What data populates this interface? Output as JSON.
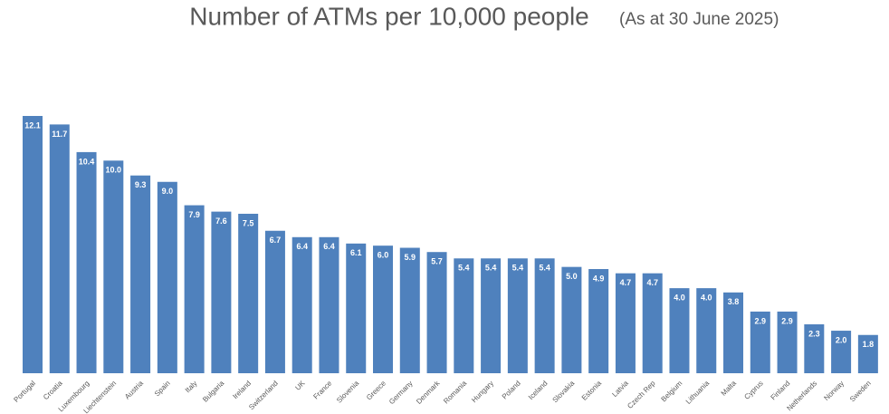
{
  "chart_data": {
    "type": "bar",
    "title": "Number of ATMs per 10,000 people",
    "subtitle": "(As at 30 June 2025)",
    "categories": [
      "Portugal",
      "Croatia",
      "Luxembourg",
      "Liechtenstein",
      "Austria",
      "Spain",
      "Italy",
      "Bulgaria",
      "Ireland",
      "Switzerland",
      "UK",
      "France",
      "Slovenia",
      "Greece",
      "Germany",
      "Denmark",
      "Romania",
      "Hungary",
      "Poland",
      "Iceland",
      "Slovakia",
      "Estonia",
      "Latvia",
      "Czech Rep",
      "Belgium",
      "Lithuania",
      "Malta",
      "Cyprus",
      "Finland",
      "Netherlands",
      "Norway",
      "Sweden"
    ],
    "values": [
      12.1,
      11.7,
      10.4,
      10.0,
      9.3,
      9.0,
      7.9,
      7.6,
      7.5,
      6.7,
      6.4,
      6.4,
      6.1,
      6.0,
      5.9,
      5.7,
      5.4,
      5.4,
      5.4,
      5.4,
      5.0,
      4.9,
      4.7,
      4.7,
      4.0,
      4.0,
      3.8,
      2.9,
      2.9,
      2.3,
      2.0,
      1.8
    ],
    "value_labels": [
      "12.1",
      "11.7",
      "10.4",
      "10.0",
      "9.3",
      "9.0",
      "7.9",
      "7.6",
      "7.5",
      "6.7",
      "6.4",
      "6.4",
      "6.1",
      "6.0",
      "5.9",
      "5.7",
      "5.4",
      "5.4",
      "5.4",
      "5.4",
      "5.0",
      "4.9",
      "4.7",
      "4.7",
      "4.0",
      "4.0",
      "3.8",
      "2.9",
      "2.9",
      "2.3",
      "2.0",
      "1.8"
    ],
    "color": "#4f81bd"
  }
}
